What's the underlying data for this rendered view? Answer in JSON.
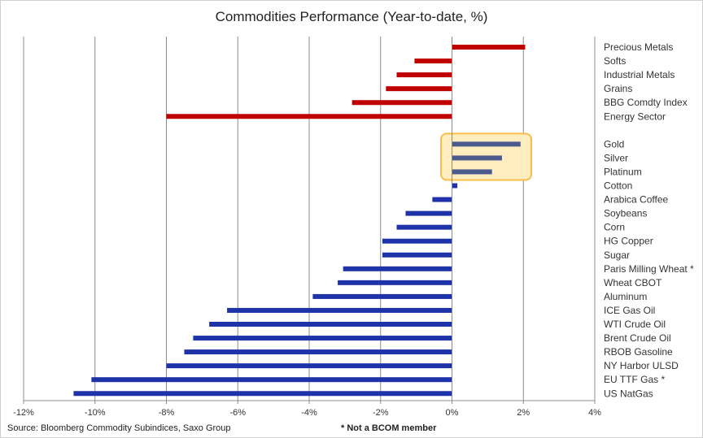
{
  "chart_data": {
    "type": "bar",
    "orientation": "horizontal",
    "title": "Commodities Performance (Year-to-date, %)",
    "xlabel": "",
    "ylabel": "",
    "xlim": [
      -12,
      4
    ],
    "x_ticks": [
      "-12%",
      "-10%",
      "-8%",
      "-6%",
      "-4%",
      "-2%",
      "0%",
      "2%",
      "4%"
    ],
    "grid": "vertical",
    "legend": "none",
    "highlight": {
      "categories": [
        "Gold",
        "Silver",
        "Platinum"
      ],
      "fill": "#FFEDC0",
      "border": "#F6BE4A"
    },
    "groups": [
      {
        "color": "#C00000",
        "categories": [
          "Precious Metals",
          "Softs",
          "Industrial Metals",
          "Grains",
          "BBG Comdty Index",
          "Energy Sector"
        ],
        "values": [
          2.05,
          -1.05,
          -1.55,
          -1.85,
          -2.8,
          -8.0
        ]
      },
      {
        "color": "#1F33A8",
        "categories": [
          "Gold",
          "Silver",
          "Platinum",
          "Cotton",
          "Arabica Coffee",
          "Soybeans",
          "Corn",
          "HG Copper",
          "Sugar",
          "Paris Milling Wheat *",
          "Wheat CBOT",
          "Aluminum",
          "ICE Gas Oil",
          "WTI Crude Oil",
          "Brent Crude Oil",
          "RBOB Gasoline",
          "NY Harbor ULSD",
          "EU TTF Gas *",
          "US NatGas"
        ],
        "values": [
          1.92,
          1.4,
          1.12,
          0.15,
          -0.55,
          -1.3,
          -1.55,
          -1.95,
          -1.95,
          -3.05,
          -3.2,
          -3.9,
          -6.3,
          -6.8,
          -7.25,
          -7.5,
          -8.0,
          -10.1,
          -10.6
        ]
      }
    ],
    "gold_color": "#4A5A8C"
  },
  "footer": {
    "source": "Source: Bloomberg Commodity Subindices, Saxo Group",
    "note": "* Not a BCOM member"
  }
}
